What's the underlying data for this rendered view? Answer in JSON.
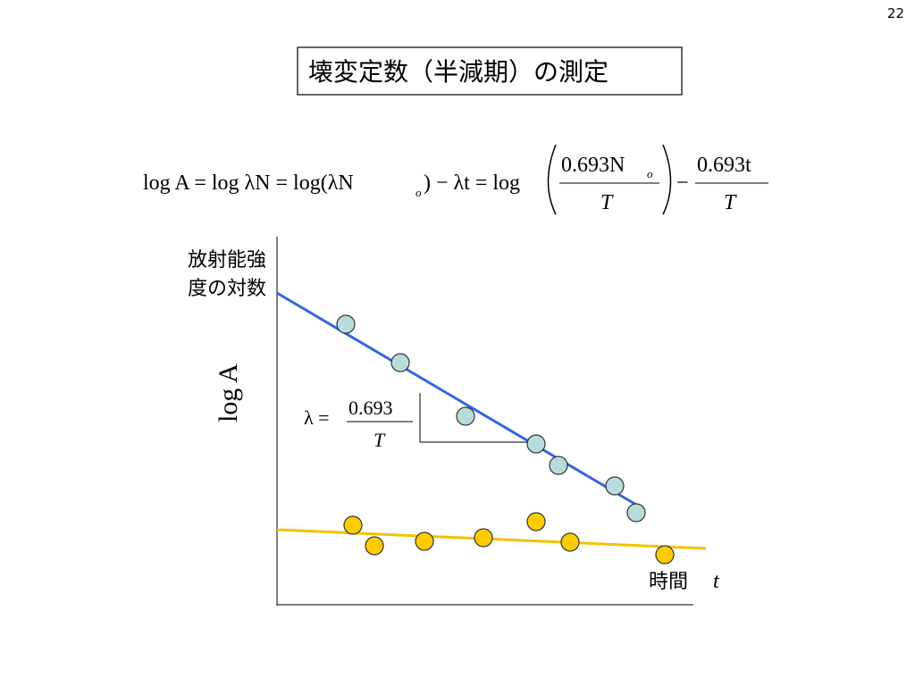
{
  "page_number": "22",
  "title": "壊変定数（半減期）の測定",
  "equation": {
    "part1": "log A = log λN = log(λN",
    "sub1": "o",
    "part2": ") − λt = log",
    "num1": "0.693N",
    "sub2": "o",
    "den1": "T",
    "minus": "−",
    "num2": "0.693t",
    "den2": "T"
  },
  "diagram": {
    "y_label_lines": [
      "放射能強",
      "度の対数"
    ],
    "y_axis_symbol": "log A",
    "lambda_lhs": "λ =",
    "lambda_num": "0.693",
    "lambda_den": "T",
    "x_label": "時間",
    "x_symbol": "t"
  }
}
